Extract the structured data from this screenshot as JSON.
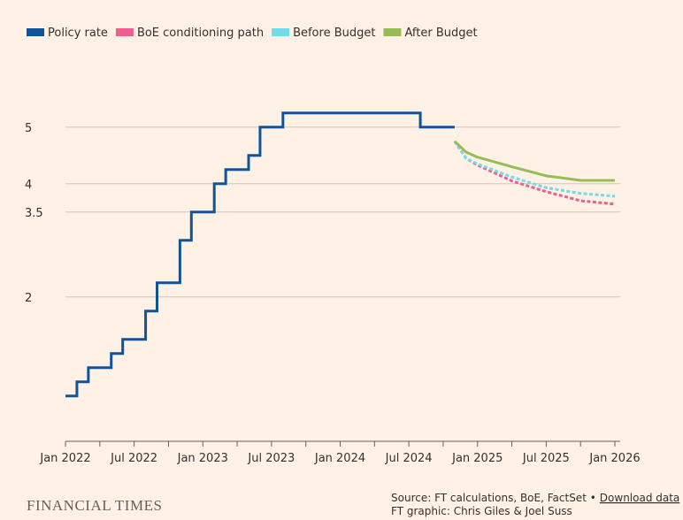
{
  "chart_data": {
    "type": "line",
    "step_series": [
      "Policy rate"
    ],
    "series": [
      {
        "name": "Policy rate",
        "color": "#0f5499",
        "dash": false,
        "x": [
          "2022-01",
          "2022-02",
          "2022-03",
          "2022-05",
          "2022-06",
          "2022-08",
          "2022-09",
          "2022-11",
          "2022-12",
          "2023-02",
          "2023-03",
          "2023-05",
          "2023-06",
          "2023-08",
          "2024-08",
          "2024-11"
        ],
        "values": [
          0.25,
          0.5,
          0.75,
          1.0,
          1.25,
          1.75,
          2.25,
          3.0,
          3.5,
          4.0,
          4.25,
          4.5,
          5.0,
          5.25,
          5.0,
          5.0
        ]
      },
      {
        "name": "BoE conditioning path",
        "color": "#eb5e8d",
        "dash": true,
        "x": [
          "2024-11",
          "2024-12",
          "2025-01",
          "2025-04",
          "2025-07",
          "2025-10",
          "2026-01"
        ],
        "values": [
          4.75,
          4.45,
          4.33,
          4.05,
          3.86,
          3.7,
          3.64
        ]
      },
      {
        "name": "Before Budget",
        "color": "#70dce6",
        "dash": true,
        "x": [
          "2024-11",
          "2024-12",
          "2025-01",
          "2025-04",
          "2025-07",
          "2025-10",
          "2026-01"
        ],
        "values": [
          4.75,
          4.45,
          4.35,
          4.12,
          3.93,
          3.83,
          3.78
        ]
      },
      {
        "name": "After Budget",
        "color": "#96bc56",
        "dash": false,
        "x": [
          "2024-11",
          "2024-12",
          "2025-01",
          "2025-04",
          "2025-07",
          "2025-10",
          "2026-01"
        ],
        "values": [
          4.75,
          4.56,
          4.47,
          4.3,
          4.14,
          4.06,
          4.06
        ]
      }
    ],
    "xlim": [
      "2022-01",
      "2026-01"
    ],
    "xticks": [
      {
        "value": "2022-01",
        "label": "Jan 2022"
      },
      {
        "value": "2022-07",
        "label": "Jul 2022"
      },
      {
        "value": "2023-01",
        "label": "Jan 2023"
      },
      {
        "value": "2023-07",
        "label": "Jul 2023"
      },
      {
        "value": "2024-01",
        "label": "Jan 2024"
      },
      {
        "value": "2024-07",
        "label": "Jul 2024"
      },
      {
        "value": "2025-01",
        "label": "Jan 2025"
      },
      {
        "value": "2025-07",
        "label": "Jul 2025"
      },
      {
        "value": "2026-01",
        "label": "Jan 2026"
      }
    ],
    "xticks_minor": [
      "2022-04",
      "2022-10",
      "2023-04",
      "2023-10",
      "2024-04",
      "2024-10",
      "2025-04",
      "2025-10"
    ],
    "ylim": [
      -0.55,
      5.7
    ],
    "yticks": [
      5,
      4,
      3.5,
      2
    ],
    "grid": true,
    "legend": "top-left",
    "logo": "FINANCIAL TIMES",
    "source": "Source: FT calculations, BoE, FactSet •",
    "download": "Download data",
    "credit": "FT graphic: Chris Giles & Joel Suss"
  }
}
